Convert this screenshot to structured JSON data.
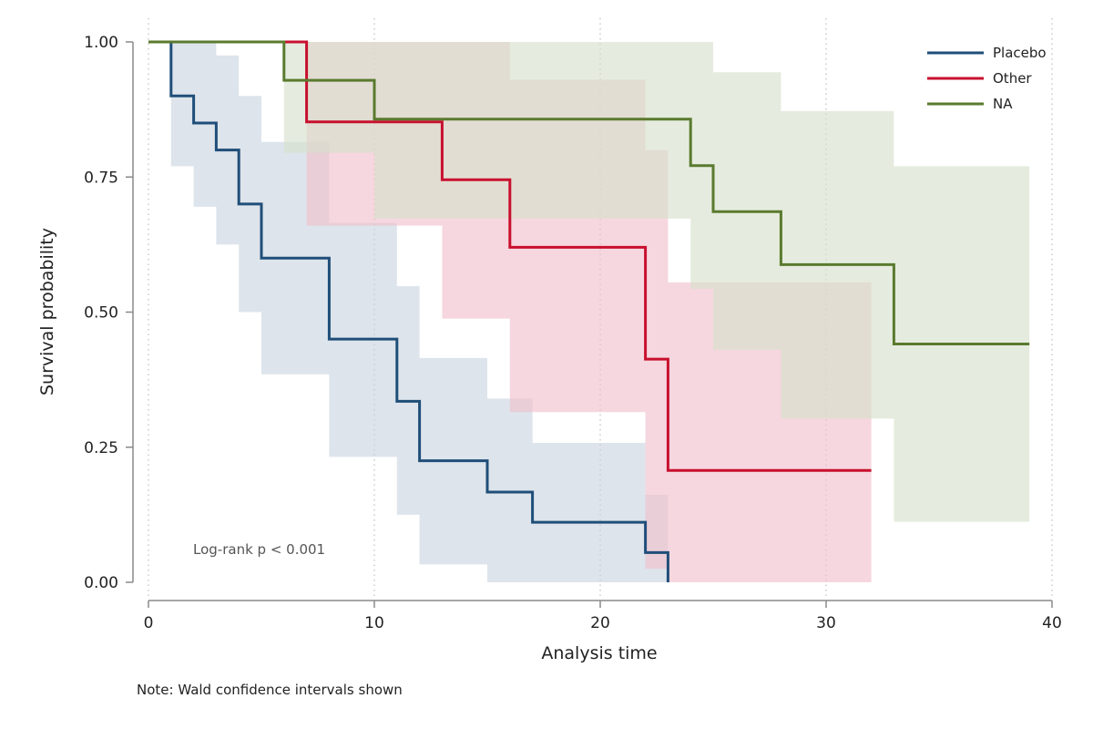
{
  "chart_data": {
    "type": "line",
    "xlabel": "Analysis time",
    "ylabel": "Survival probability",
    "xlim": [
      0,
      40
    ],
    "ylim": [
      0,
      1
    ],
    "x_ticks": [
      "0",
      "10",
      "20",
      "30",
      "40"
    ],
    "y_ticks": [
      "0.00",
      "0.25",
      "0.50",
      "0.75",
      "1.00"
    ],
    "grid": "vertical dotted",
    "legend_position": "top-right",
    "annotation": "Log-rank p < 0.001",
    "note": "Note: Wald confidence intervals shown",
    "series": [
      {
        "name": "Placebo",
        "color": "#1f4e79",
        "band_color": "#c8d3de",
        "x": [
          0,
          1,
          2,
          3,
          4,
          5,
          8,
          11,
          12,
          15,
          17,
          22,
          23
        ],
        "y": [
          1.0,
          0.9,
          0.85,
          0.8,
          0.7,
          0.6,
          0.45,
          0.335,
          0.225,
          0.167,
          0.111,
          0.055,
          0.0
        ],
        "lower": [
          1.0,
          0.77,
          0.695,
          0.625,
          0.5,
          0.385,
          0.232,
          0.125,
          0.033,
          0.0,
          0.0,
          0.0,
          0.0
        ],
        "upper": [
          1.0,
          1.0,
          1.0,
          0.975,
          0.9,
          0.815,
          0.665,
          0.548,
          0.415,
          0.34,
          0.258,
          0.162,
          0.0
        ]
      },
      {
        "name": "Other",
        "color": "#c8102e",
        "band_color": "#f0bfcb",
        "x": [
          0,
          7,
          13,
          16,
          22,
          23,
          32
        ],
        "y": [
          1.0,
          0.852,
          0.745,
          0.62,
          0.413,
          0.207,
          0.207
        ],
        "lower": [
          1.0,
          0.66,
          0.488,
          0.315,
          0.025,
          0.0,
          0.0
        ],
        "upper": [
          1.0,
          1.0,
          1.0,
          0.93,
          0.8,
          0.555,
          0.555
        ]
      },
      {
        "name": "NA",
        "color": "#5a7a2e",
        "band_color": "#d5e0cc",
        "x": [
          0,
          6,
          10,
          24,
          25,
          28,
          33,
          39
        ],
        "y": [
          1.0,
          0.929,
          0.857,
          0.771,
          0.686,
          0.588,
          0.441,
          0.441
        ],
        "lower": [
          1.0,
          0.795,
          0.673,
          0.543,
          0.43,
          0.303,
          0.112,
          0.112
        ],
        "upper": [
          1.0,
          1.0,
          1.0,
          1.0,
          0.944,
          0.872,
          0.77,
          0.77
        ]
      }
    ]
  }
}
